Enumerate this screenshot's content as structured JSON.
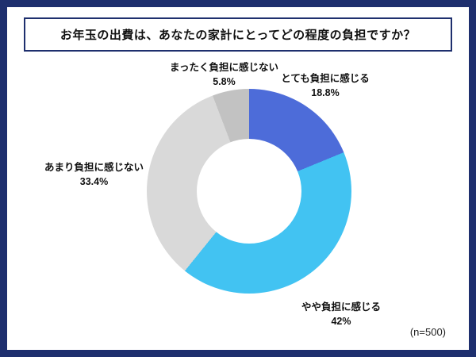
{
  "colors": {
    "frame": "#1e2f6e",
    "card": "#ffffff",
    "text": "#111111"
  },
  "header": {
    "title": "お年玉の出費は、あなたの家計にとってどの程度の負担ですか？"
  },
  "footer": {
    "sample_size": "(n=500)"
  },
  "chart_data": {
    "type": "pie",
    "variant": "donut",
    "title": "お年玉の出費は、あなたの家計にとってどの程度の負担ですか？",
    "n": 500,
    "start_angle_deg": 0,
    "direction": "clockwise",
    "donut_hole_ratio": 0.51,
    "legend_position": "labels-around-chart",
    "segments": [
      {
        "label": "とても負担に感じる",
        "value": 18.8,
        "display": "18.8%",
        "color": "#4d6cd9"
      },
      {
        "label": "やや負担に感じる",
        "value": 42,
        "display": "42%",
        "color": "#42c3f2"
      },
      {
        "label": "あまり負担に感じない",
        "value": 33.4,
        "display": "33.4%",
        "color": "#d9d9d9"
      },
      {
        "label": "まったく負担に感じない",
        "value": 5.8,
        "display": "5.8%",
        "color": "#c2c2c2"
      }
    ]
  }
}
